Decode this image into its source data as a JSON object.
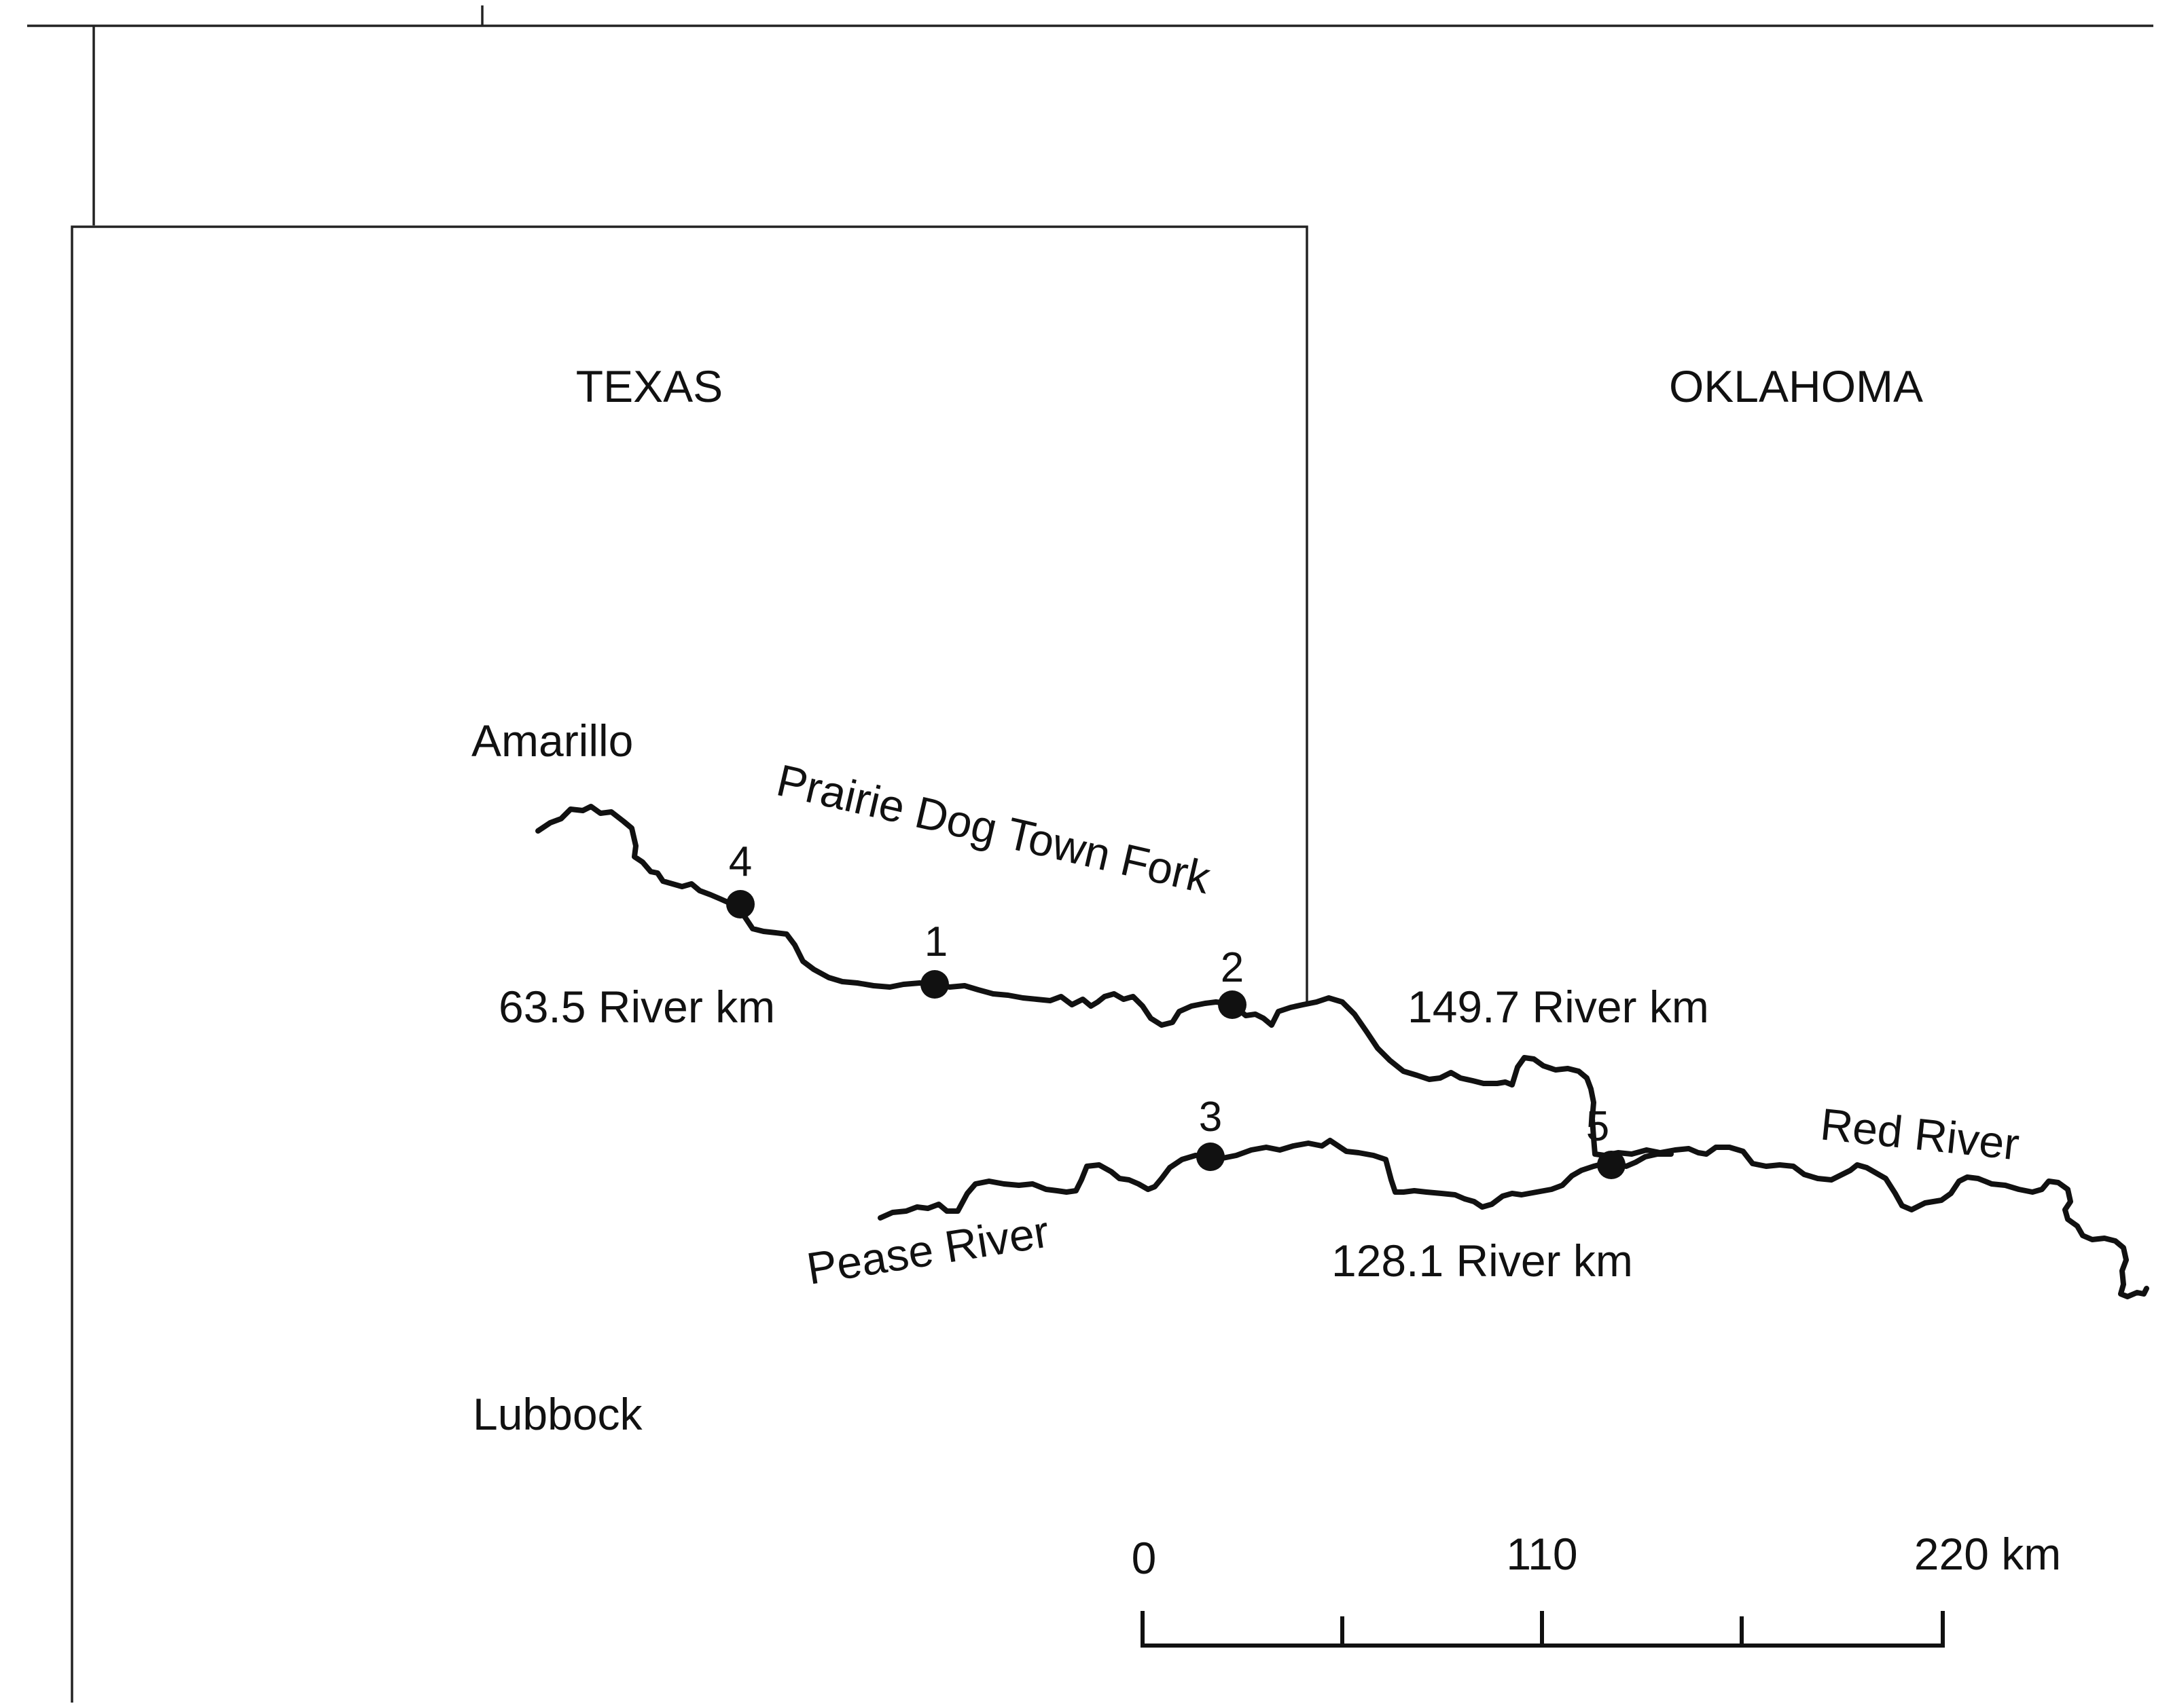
{
  "map": {
    "states": [
      {
        "id": "texas",
        "name": "TEXAS"
      },
      {
        "id": "oklahoma",
        "name": "OKLAHOMA"
      }
    ],
    "cities": [
      {
        "id": "amarillo",
        "name": "Amarillo"
      },
      {
        "id": "lubbock",
        "name": "Lubbock"
      }
    ],
    "rivers": [
      {
        "id": "prairie-dog-town-fork",
        "name": "Prairie Dog Town Fork"
      },
      {
        "id": "pease-river",
        "name": "Pease River"
      },
      {
        "id": "red-river",
        "name": "Red River"
      }
    ],
    "reach_lengths": [
      {
        "id": "reach-1",
        "label": "63.5 River km"
      },
      {
        "id": "reach-2",
        "label": "149.7 River km"
      },
      {
        "id": "reach-3",
        "label": "128.1 River km"
      }
    ],
    "sites": [
      {
        "id": "1",
        "label": "1"
      },
      {
        "id": "2",
        "label": "2"
      },
      {
        "id": "3",
        "label": "3"
      },
      {
        "id": "4",
        "label": "4"
      },
      {
        "id": "5",
        "label": "5"
      }
    ],
    "scale_bar": {
      "tick_labels": [
        "0",
        "110",
        "220 km"
      ],
      "max_km": 220
    }
  }
}
